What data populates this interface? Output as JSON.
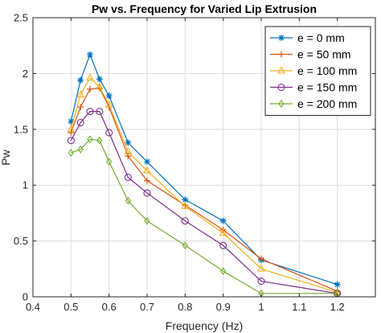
{
  "chart_data": {
    "type": "line",
    "title": "Pw vs. Frequency for Varied Lip Extrusion",
    "xlabel": "Frequency (Hz)",
    "ylabel": "Pw",
    "xlim": [
      0.4,
      1.3
    ],
    "ylim": [
      0,
      2.5
    ],
    "xticks": [
      0.4,
      0.5,
      0.6,
      0.7,
      0.8,
      0.9,
      1,
      1.1,
      1.2
    ],
    "xtick_labels": [
      "0.4",
      "0.5",
      "0.6",
      "0.7",
      "0.8",
      "0.9",
      "1",
      "1.1",
      "1.2"
    ],
    "yticks": [
      0,
      0.5,
      1,
      1.5,
      2,
      2.5
    ],
    "ytick_labels": [
      "0",
      "0.5",
      "1",
      "1.5",
      "2",
      "2.5"
    ],
    "grid": true,
    "legend_position": "top-right",
    "series": [
      {
        "name": "e = 0 mm",
        "color": "#0072BD",
        "marker": "asterisk",
        "x": [
          0.5,
          0.525,
          0.55,
          0.575,
          0.6,
          0.65,
          0.7,
          0.8,
          0.9,
          1.0,
          1.2
        ],
        "y": [
          1.57,
          1.94,
          2.17,
          1.95,
          1.8,
          1.38,
          1.21,
          0.87,
          0.68,
          0.33,
          0.11
        ]
      },
      {
        "name": "e = 50 mm",
        "color": "#D95319",
        "marker": "plus",
        "x": [
          0.5,
          0.525,
          0.55,
          0.575,
          0.6,
          0.65,
          0.7,
          0.8,
          0.9,
          1.0,
          1.2
        ],
        "y": [
          1.47,
          1.7,
          1.86,
          1.87,
          1.7,
          1.26,
          1.04,
          0.82,
          0.6,
          0.34,
          0.05
        ]
      },
      {
        "name": "e = 100 mm",
        "color": "#EDB120",
        "marker": "triangle",
        "x": [
          0.5,
          0.525,
          0.55,
          0.575,
          0.6,
          0.65,
          0.7,
          0.8,
          0.9,
          1.0,
          1.2
        ],
        "y": [
          1.5,
          1.81,
          1.96,
          1.88,
          1.72,
          1.3,
          1.13,
          0.81,
          0.57,
          0.25,
          0.04
        ]
      },
      {
        "name": "e = 150 mm",
        "color": "#7E2F8E",
        "marker": "circle",
        "x": [
          0.5,
          0.525,
          0.55,
          0.575,
          0.6,
          0.65,
          0.7,
          0.8,
          0.9,
          1.0,
          1.2
        ],
        "y": [
          1.4,
          1.56,
          1.66,
          1.66,
          1.47,
          1.07,
          0.93,
          0.68,
          0.46,
          0.14,
          0.03
        ]
      },
      {
        "name": "e = 200 mm",
        "color": "#77AC30",
        "marker": "diamond",
        "x": [
          0.5,
          0.525,
          0.55,
          0.575,
          0.6,
          0.65,
          0.7,
          0.8,
          0.9,
          1.0,
          1.2
        ],
        "y": [
          1.29,
          1.32,
          1.41,
          1.4,
          1.21,
          0.86,
          0.68,
          0.46,
          0.23,
          0.03,
          0.03
        ]
      }
    ]
  }
}
